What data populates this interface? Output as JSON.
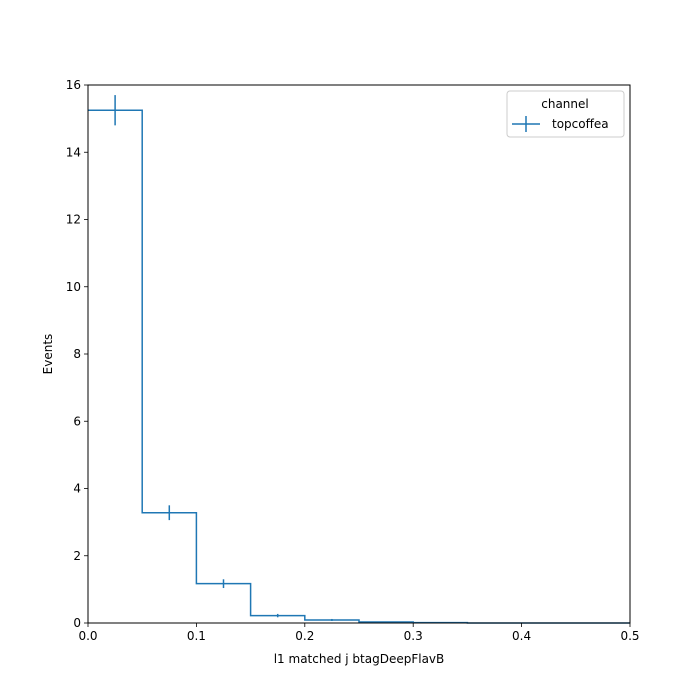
{
  "chart_data": {
    "type": "histogram",
    "xlabel": "l1 matched j btagDeepFlavB",
    "ylabel": "Events",
    "xlim": [
      0,
      0.5
    ],
    "ylim": [
      0,
      16
    ],
    "xticks": [
      0.0,
      0.1,
      0.2,
      0.3,
      0.4,
      0.5
    ],
    "xtick_labels": [
      "0.0",
      "0.1",
      "0.2",
      "0.3",
      "0.4",
      "0.5"
    ],
    "yticks": [
      0,
      2,
      4,
      6,
      8,
      10,
      12,
      14,
      16
    ],
    "ytick_labels": [
      "0",
      "2",
      "4",
      "6",
      "8",
      "10",
      "12",
      "14",
      "16"
    ],
    "bin_edges": [
      0.0,
      0.05,
      0.1,
      0.15,
      0.2,
      0.25,
      0.3,
      0.35,
      0.4,
      0.45,
      0.5
    ],
    "series": [
      {
        "name": "topcoffea",
        "color": "#1f77b4",
        "values": [
          15.25,
          3.28,
          1.17,
          0.22,
          0.09,
          0.03,
          0.01,
          0.0,
          0.0,
          0.0
        ],
        "errors": [
          0.45,
          0.22,
          0.13,
          0.05,
          0.03,
          0.0,
          0.0,
          0.0,
          0.0,
          0.0
        ]
      }
    ],
    "legend": {
      "title": "channel",
      "placement": "top-right"
    },
    "grid": false
  }
}
